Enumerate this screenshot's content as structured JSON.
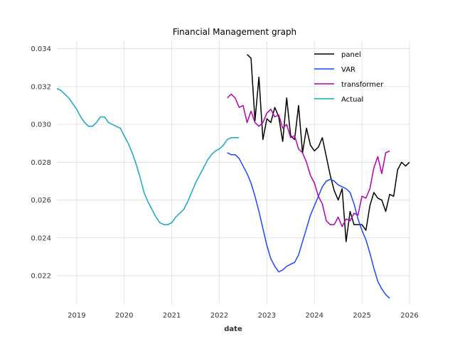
{
  "chart_data": {
    "type": "line",
    "title": "Financial Management graph",
    "xlabel": "date",
    "ylabel": "",
    "xlim": [
      "2018-08-01",
      "2026-01-01"
    ],
    "ylim": [
      0.0205,
      0.0344
    ],
    "x_ticks": [
      "2019",
      "2020",
      "2021",
      "2022",
      "2023",
      "2024",
      "2025",
      "2026"
    ],
    "y_ticks": [
      "0.022",
      "0.024",
      "0.026",
      "0.028",
      "0.030",
      "0.032",
      "0.034"
    ],
    "grid": true,
    "legend_position": "top-right",
    "series": [
      {
        "name": "panel",
        "color": "#000000",
        "points": [
          [
            "2022-08",
            0.0337
          ],
          [
            "2022-09",
            0.0335
          ],
          [
            "2022-10",
            0.0302
          ],
          [
            "2022-11",
            0.0325
          ],
          [
            "2022-12",
            0.0292
          ],
          [
            "2023-01",
            0.0303
          ],
          [
            "2023-02",
            0.0301
          ],
          [
            "2023-03",
            0.0309
          ],
          [
            "2023-04",
            0.0304
          ],
          [
            "2023-05",
            0.0291
          ],
          [
            "2023-06",
            0.0314
          ],
          [
            "2023-07",
            0.0294
          ],
          [
            "2023-08",
            0.0292
          ],
          [
            "2023-09",
            0.031
          ],
          [
            "2023-10",
            0.0285
          ],
          [
            "2023-11",
            0.0298
          ],
          [
            "2023-12",
            0.0289
          ],
          [
            "2024-01",
            0.0286
          ],
          [
            "2024-02",
            0.0288
          ],
          [
            "2024-03",
            0.0293
          ],
          [
            "2024-04",
            0.0283
          ],
          [
            "2024-05",
            0.0273
          ],
          [
            "2024-06",
            0.0265
          ],
          [
            "2024-07",
            0.026
          ],
          [
            "2024-08",
            0.0266
          ],
          [
            "2024-09",
            0.0238
          ],
          [
            "2024-10",
            0.0254
          ],
          [
            "2024-11",
            0.0247
          ],
          [
            "2024-12",
            0.0247
          ],
          [
            "2025-01",
            0.0247
          ],
          [
            "2025-02",
            0.0244
          ],
          [
            "2025-03",
            0.0257
          ],
          [
            "2025-04",
            0.0264
          ],
          [
            "2025-05",
            0.0261
          ],
          [
            "2025-06",
            0.026
          ],
          [
            "2025-07",
            0.0254
          ],
          [
            "2025-08",
            0.0263
          ],
          [
            "2025-09",
            0.0262
          ],
          [
            "2025-10",
            0.0276
          ],
          [
            "2025-11",
            0.028
          ],
          [
            "2025-12",
            0.0278
          ],
          [
            "2026-01",
            0.028
          ]
        ]
      },
      {
        "name": "VAR",
        "color": "#1f45ff",
        "points": [
          [
            "2022-03",
            0.0285
          ],
          [
            "2022-04",
            0.0284
          ],
          [
            "2022-05",
            0.0284
          ],
          [
            "2022-06",
            0.0282
          ],
          [
            "2022-07",
            0.0278
          ],
          [
            "2022-08",
            0.0274
          ],
          [
            "2022-09",
            0.0269
          ],
          [
            "2022-10",
            0.0262
          ],
          [
            "2022-11",
            0.0254
          ],
          [
            "2022-12",
            0.0245
          ],
          [
            "2023-01",
            0.0236
          ],
          [
            "2023-02",
            0.0229
          ],
          [
            "2023-03",
            0.0225
          ],
          [
            "2023-04",
            0.0222
          ],
          [
            "2023-05",
            0.0223
          ],
          [
            "2023-06",
            0.0225
          ],
          [
            "2023-07",
            0.0226
          ],
          [
            "2023-08",
            0.0227
          ],
          [
            "2023-09",
            0.0231
          ],
          [
            "2023-10",
            0.0238
          ],
          [
            "2023-11",
            0.0245
          ],
          [
            "2023-12",
            0.0252
          ],
          [
            "2024-01",
            0.0257
          ],
          [
            "2024-02",
            0.0262
          ],
          [
            "2024-03",
            0.0267
          ],
          [
            "2024-04",
            0.027
          ],
          [
            "2024-05",
            0.0271
          ],
          [
            "2024-06",
            0.027
          ],
          [
            "2024-07",
            0.0268
          ],
          [
            "2024-08",
            0.0267
          ],
          [
            "2024-09",
            0.0266
          ],
          [
            "2024-10",
            0.0264
          ],
          [
            "2024-11",
            0.0258
          ],
          [
            "2024-12",
            0.025
          ],
          [
            "2025-01",
            0.0244
          ],
          [
            "2025-02",
            0.0239
          ],
          [
            "2025-03",
            0.0232
          ],
          [
            "2025-04",
            0.0224
          ],
          [
            "2025-05",
            0.0217
          ],
          [
            "2025-06",
            0.0213
          ],
          [
            "2025-07",
            0.021
          ],
          [
            "2025-08",
            0.0208
          ]
        ]
      },
      {
        "name": "transformer",
        "color": "#b300b3",
        "points": [
          [
            "2022-03",
            0.0314
          ],
          [
            "2022-04",
            0.0316
          ],
          [
            "2022-05",
            0.0314
          ],
          [
            "2022-06",
            0.0309
          ],
          [
            "2022-07",
            0.031
          ],
          [
            "2022-08",
            0.0301
          ],
          [
            "2022-09",
            0.0307
          ],
          [
            "2022-10",
            0.0301
          ],
          [
            "2022-11",
            0.0299
          ],
          [
            "2022-12",
            0.0301
          ],
          [
            "2023-01",
            0.0306
          ],
          [
            "2023-02",
            0.0308
          ],
          [
            "2023-03",
            0.0304
          ],
          [
            "2023-04",
            0.0305
          ],
          [
            "2023-05",
            0.0298
          ],
          [
            "2023-06",
            0.03
          ],
          [
            "2023-07",
            0.0293
          ],
          [
            "2023-08",
            0.0294
          ],
          [
            "2023-09",
            0.0287
          ],
          [
            "2023-10",
            0.0285
          ],
          [
            "2023-11",
            0.028
          ],
          [
            "2023-12",
            0.0273
          ],
          [
            "2024-01",
            0.0269
          ],
          [
            "2024-02",
            0.0262
          ],
          [
            "2024-03",
            0.0258
          ],
          [
            "2024-04",
            0.0249
          ],
          [
            "2024-05",
            0.0247
          ],
          [
            "2024-06",
            0.0247
          ],
          [
            "2024-07",
            0.0251
          ],
          [
            "2024-08",
            0.0246
          ],
          [
            "2024-09",
            0.025
          ],
          [
            "2024-10",
            0.0249
          ],
          [
            "2024-11",
            0.0253
          ],
          [
            "2024-12",
            0.0252
          ],
          [
            "2025-01",
            0.0262
          ],
          [
            "2025-02",
            0.0261
          ],
          [
            "2025-03",
            0.0266
          ],
          [
            "2025-04",
            0.0277
          ],
          [
            "2025-05",
            0.0283
          ],
          [
            "2025-06",
            0.0274
          ],
          [
            "2025-07",
            0.0285
          ],
          [
            "2025-08",
            0.0286
          ]
        ]
      },
      {
        "name": "Actual",
        "color": "#17a9c1",
        "points": [
          [
            "2018-08",
            0.0319
          ],
          [
            "2018-09",
            0.0318
          ],
          [
            "2018-10",
            0.0316
          ],
          [
            "2018-11",
            0.0314
          ],
          [
            "2018-12",
            0.0311
          ],
          [
            "2019-01",
            0.0308
          ],
          [
            "2019-02",
            0.0304
          ],
          [
            "2019-03",
            0.0301
          ],
          [
            "2019-04",
            0.0299
          ],
          [
            "2019-05",
            0.0299
          ],
          [
            "2019-06",
            0.0301
          ],
          [
            "2019-07",
            0.0304
          ],
          [
            "2019-08",
            0.0304
          ],
          [
            "2019-09",
            0.0301
          ],
          [
            "2019-10",
            0.03
          ],
          [
            "2019-11",
            0.0299
          ],
          [
            "2019-12",
            0.0298
          ],
          [
            "2020-01",
            0.0294
          ],
          [
            "2020-02",
            0.029
          ],
          [
            "2020-03",
            0.0285
          ],
          [
            "2020-04",
            0.0279
          ],
          [
            "2020-05",
            0.0272
          ],
          [
            "2020-06",
            0.0264
          ],
          [
            "2020-07",
            0.0259
          ],
          [
            "2020-08",
            0.0255
          ],
          [
            "2020-09",
            0.0251
          ],
          [
            "2020-10",
            0.0248
          ],
          [
            "2020-11",
            0.0247
          ],
          [
            "2020-12",
            0.0247
          ],
          [
            "2021-01",
            0.0248
          ],
          [
            "2021-02",
            0.0251
          ],
          [
            "2021-03",
            0.0253
          ],
          [
            "2021-04",
            0.0255
          ],
          [
            "2021-05",
            0.0259
          ],
          [
            "2021-06",
            0.0264
          ],
          [
            "2021-07",
            0.0269
          ],
          [
            "2021-08",
            0.0273
          ],
          [
            "2021-09",
            0.0277
          ],
          [
            "2021-10",
            0.0281
          ],
          [
            "2021-11",
            0.0284
          ],
          [
            "2021-12",
            0.0286
          ],
          [
            "2022-01",
            0.0287
          ],
          [
            "2022-02",
            0.0289
          ],
          [
            "2022-03",
            0.0292
          ],
          [
            "2022-04",
            0.0293
          ],
          [
            "2022-05",
            0.0293
          ],
          [
            "2022-06",
            0.0293
          ]
        ]
      }
    ]
  }
}
